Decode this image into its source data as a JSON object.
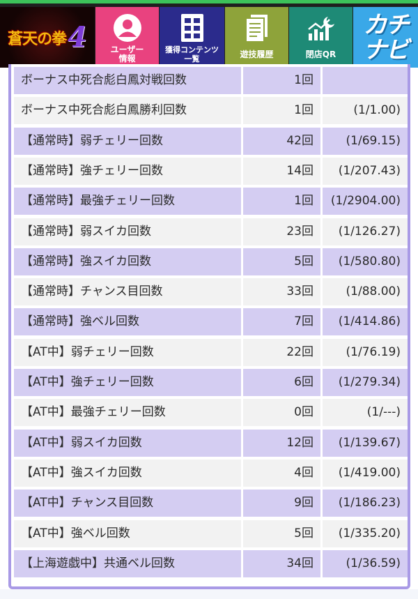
{
  "header": {
    "logo_text": "蒼天の拳",
    "logo_num": "4",
    "nav": [
      {
        "id": "user",
        "label": "ユーザー\n情報",
        "icon": "user-icon"
      },
      {
        "id": "content",
        "label": "獲得コンテンツ\n一覧",
        "icon": "grid-document-icon"
      },
      {
        "id": "history",
        "label": "遊技履歴",
        "icon": "document-icon"
      },
      {
        "id": "qr",
        "label": "閉店QR",
        "icon": "chart-moon-icon"
      }
    ],
    "brand": "カチ\nナビ"
  },
  "stats": [
    {
      "label": "ボーナス中死合彪白鳳対戦回数",
      "count": "1回",
      "prob": ""
    },
    {
      "label": "ボーナス中死合彪白鳳勝利回数",
      "count": "1回",
      "prob": "(1/1.00)"
    },
    {
      "label": "【通常時】弱チェリー回数",
      "count": "42回",
      "prob": "(1/69.15)"
    },
    {
      "label": "【通常時】強チェリー回数",
      "count": "14回",
      "prob": "(1/207.43)"
    },
    {
      "label": "【通常時】最強チェリー回数",
      "count": "1回",
      "prob": "(1/2904.00)"
    },
    {
      "label": "【通常時】弱スイカ回数",
      "count": "23回",
      "prob": "(1/126.27)"
    },
    {
      "label": "【通常時】強スイカ回数",
      "count": "5回",
      "prob": "(1/580.80)"
    },
    {
      "label": "【通常時】チャンス目回数",
      "count": "33回",
      "prob": "(1/88.00)"
    },
    {
      "label": "【通常時】強ベル回数",
      "count": "7回",
      "prob": "(1/414.86)"
    },
    {
      "label": "【AT中】弱チェリー回数",
      "count": "22回",
      "prob": "(1/76.19)"
    },
    {
      "label": "【AT中】強チェリー回数",
      "count": "6回",
      "prob": "(1/279.34)"
    },
    {
      "label": "【AT中】最強チェリー回数",
      "count": "0回",
      "prob": "(1/---)"
    },
    {
      "label": "【AT中】弱スイカ回数",
      "count": "12回",
      "prob": "(1/139.67)"
    },
    {
      "label": "【AT中】強スイカ回数",
      "count": "4回",
      "prob": "(1/419.00)"
    },
    {
      "label": "【AT中】チャンス目回数",
      "count": "9回",
      "prob": "(1/186.23)"
    },
    {
      "label": "【AT中】強ベル回数",
      "count": "5回",
      "prob": "(1/335.20)"
    },
    {
      "label": "【上海遊戯中】共通ベル回数",
      "count": "34回",
      "prob": "(1/36.59)"
    }
  ],
  "colors": {
    "row_odd": "#d4cdf2",
    "row_even": "#f2f2f2",
    "panel_border": "#a99ae6",
    "nav_user": "#e9427f",
    "nav_content": "#2b2b8c",
    "nav_history": "#8ea33a",
    "nav_qr": "#1e8a76",
    "brand": "#3aa8e8"
  }
}
